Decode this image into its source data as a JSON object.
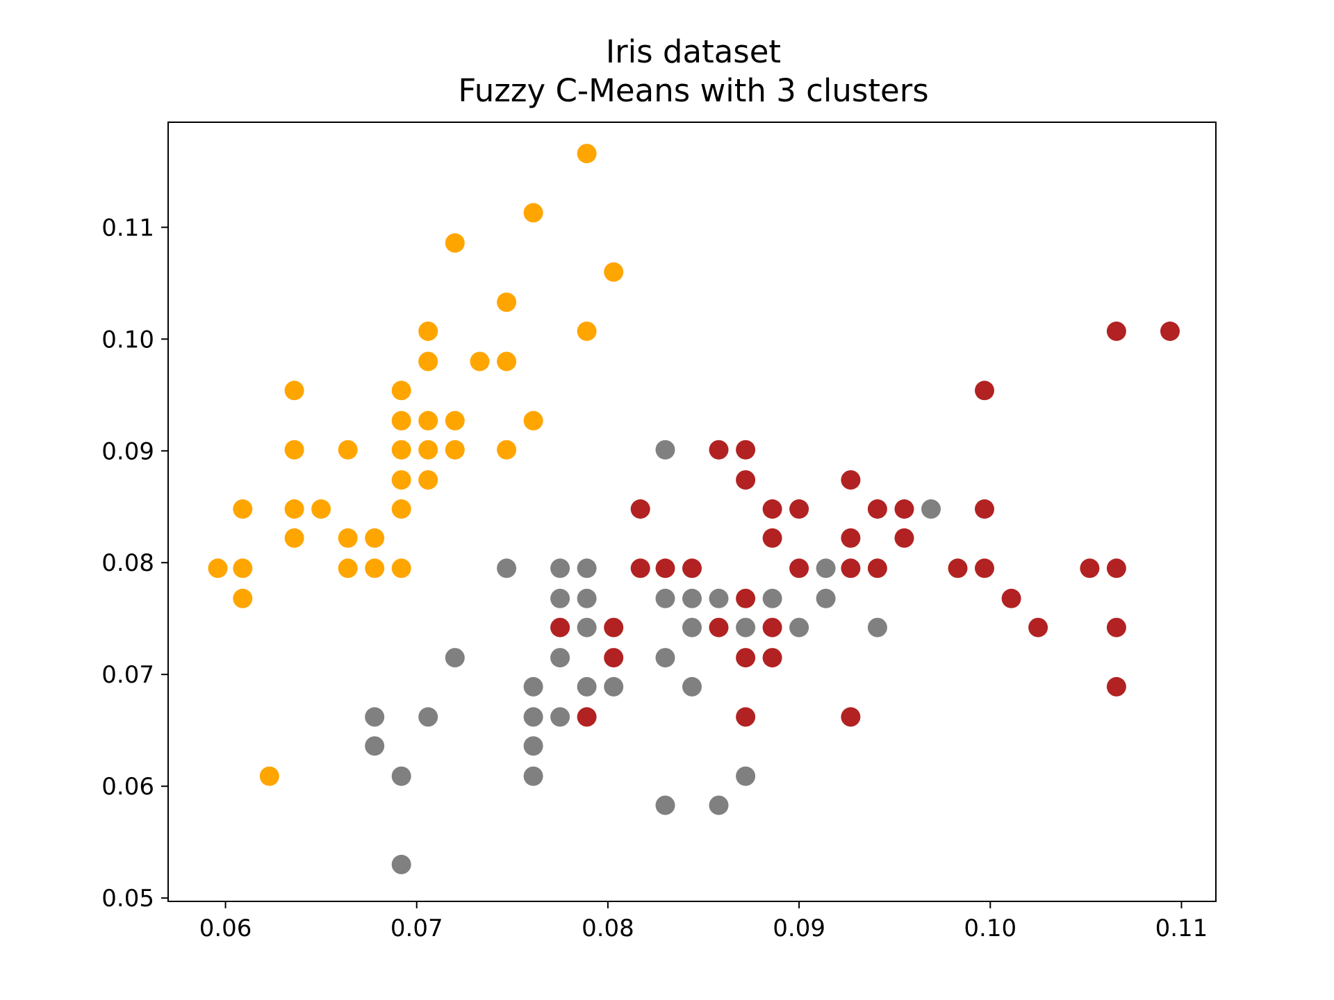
{
  "chart_data": {
    "type": "scatter",
    "title": "Iris dataset",
    "subtitle": "Fuzzy C-Means with 3 clusters",
    "xlabel": "",
    "ylabel": "",
    "xlim": [
      0.057,
      0.1118
    ],
    "ylim": [
      0.0497,
      0.1194
    ],
    "x_ticks": [
      0.06,
      0.07,
      0.08,
      0.09,
      0.1,
      0.11
    ],
    "x_tick_labels": [
      "0.06",
      "0.07",
      "0.08",
      "0.09",
      "0.10",
      "0.11"
    ],
    "y_ticks": [
      0.05,
      0.06,
      0.07,
      0.08,
      0.09,
      0.1,
      0.11
    ],
    "y_tick_labels": [
      "0.05",
      "0.06",
      "0.07",
      "0.08",
      "0.09",
      "0.10",
      "0.11"
    ],
    "grid": false,
    "legend": "none",
    "series": [
      {
        "color": "#ffa500",
        "points": [
          [
            0.0596,
            0.0795
          ],
          [
            0.0609,
            0.0795
          ],
          [
            0.0609,
            0.0768
          ],
          [
            0.0609,
            0.0848
          ],
          [
            0.0623,
            0.0609
          ],
          [
            0.0636,
            0.0822
          ],
          [
            0.0636,
            0.0848
          ],
          [
            0.0636,
            0.0901
          ],
          [
            0.0636,
            0.0954
          ],
          [
            0.065,
            0.0848
          ],
          [
            0.0664,
            0.0795
          ],
          [
            0.0664,
            0.0822
          ],
          [
            0.0664,
            0.0901
          ],
          [
            0.0678,
            0.0795
          ],
          [
            0.0678,
            0.0822
          ],
          [
            0.0692,
            0.0795
          ],
          [
            0.0692,
            0.0848
          ],
          [
            0.0692,
            0.0874
          ],
          [
            0.0692,
            0.0901
          ],
          [
            0.0692,
            0.0927
          ],
          [
            0.0692,
            0.0954
          ],
          [
            0.0706,
            0.0874
          ],
          [
            0.0706,
            0.0901
          ],
          [
            0.0706,
            0.0927
          ],
          [
            0.0706,
            0.098
          ],
          [
            0.0706,
            0.1007
          ],
          [
            0.072,
            0.0901
          ],
          [
            0.072,
            0.0927
          ],
          [
            0.072,
            0.1086
          ],
          [
            0.0733,
            0.098
          ],
          [
            0.0747,
            0.0901
          ],
          [
            0.0747,
            0.098
          ],
          [
            0.0747,
            0.1033
          ],
          [
            0.0761,
            0.0927
          ],
          [
            0.0761,
            0.1113
          ],
          [
            0.0789,
            0.1007
          ],
          [
            0.0789,
            0.1166
          ],
          [
            0.0803,
            0.106
          ]
        ]
      },
      {
        "color": "#808080",
        "points": [
          [
            0.0678,
            0.0636
          ],
          [
            0.0678,
            0.0662
          ],
          [
            0.0692,
            0.053
          ],
          [
            0.0692,
            0.0609
          ],
          [
            0.0706,
            0.0662
          ],
          [
            0.072,
            0.0715
          ],
          [
            0.0747,
            0.0795
          ],
          [
            0.0761,
            0.0609
          ],
          [
            0.0761,
            0.0636
          ],
          [
            0.0761,
            0.0662
          ],
          [
            0.0761,
            0.0689
          ],
          [
            0.0775,
            0.0662
          ],
          [
            0.0775,
            0.0715
          ],
          [
            0.0775,
            0.0768
          ],
          [
            0.0775,
            0.0795
          ],
          [
            0.0789,
            0.0689
          ],
          [
            0.0789,
            0.0742
          ],
          [
            0.0789,
            0.0768
          ],
          [
            0.0789,
            0.0795
          ],
          [
            0.0803,
            0.0689
          ],
          [
            0.083,
            0.0583
          ],
          [
            0.083,
            0.0715
          ],
          [
            0.083,
            0.0768
          ],
          [
            0.083,
            0.0901
          ],
          [
            0.0844,
            0.0689
          ],
          [
            0.0844,
            0.0742
          ],
          [
            0.0844,
            0.0768
          ],
          [
            0.0858,
            0.0583
          ],
          [
            0.0858,
            0.0768
          ],
          [
            0.0872,
            0.0609
          ],
          [
            0.0872,
            0.0742
          ],
          [
            0.0886,
            0.0768
          ],
          [
            0.09,
            0.0742
          ],
          [
            0.0914,
            0.0768
          ],
          [
            0.0914,
            0.0795
          ],
          [
            0.0941,
            0.0742
          ],
          [
            0.0969,
            0.0848
          ]
        ]
      },
      {
        "color": "#b22222",
        "points": [
          [
            0.0775,
            0.0742
          ],
          [
            0.0789,
            0.0662
          ],
          [
            0.0803,
            0.0715
          ],
          [
            0.0803,
            0.0742
          ],
          [
            0.0817,
            0.0795
          ],
          [
            0.0817,
            0.0848
          ],
          [
            0.083,
            0.0795
          ],
          [
            0.0844,
            0.0795
          ],
          [
            0.0858,
            0.0742
          ],
          [
            0.0858,
            0.0901
          ],
          [
            0.0872,
            0.0662
          ],
          [
            0.0872,
            0.0715
          ],
          [
            0.0872,
            0.0768
          ],
          [
            0.0872,
            0.0874
          ],
          [
            0.0872,
            0.0901
          ],
          [
            0.0886,
            0.0715
          ],
          [
            0.0886,
            0.0742
          ],
          [
            0.0886,
            0.0822
          ],
          [
            0.0886,
            0.0848
          ],
          [
            0.09,
            0.0795
          ],
          [
            0.09,
            0.0848
          ],
          [
            0.0927,
            0.0662
          ],
          [
            0.0927,
            0.0795
          ],
          [
            0.0927,
            0.0822
          ],
          [
            0.0927,
            0.0874
          ],
          [
            0.0941,
            0.0795
          ],
          [
            0.0941,
            0.0848
          ],
          [
            0.0955,
            0.0822
          ],
          [
            0.0955,
            0.0848
          ],
          [
            0.0983,
            0.0795
          ],
          [
            0.0997,
            0.0795
          ],
          [
            0.0997,
            0.0848
          ],
          [
            0.0997,
            0.0954
          ],
          [
            0.1011,
            0.0768
          ],
          [
            0.1025,
            0.0742
          ],
          [
            0.1052,
            0.0795
          ],
          [
            0.1066,
            0.0689
          ],
          [
            0.1066,
            0.0742
          ],
          [
            0.1066,
            0.0795
          ],
          [
            0.1066,
            0.1007
          ],
          [
            0.1094,
            0.1007
          ]
        ]
      }
    ]
  }
}
